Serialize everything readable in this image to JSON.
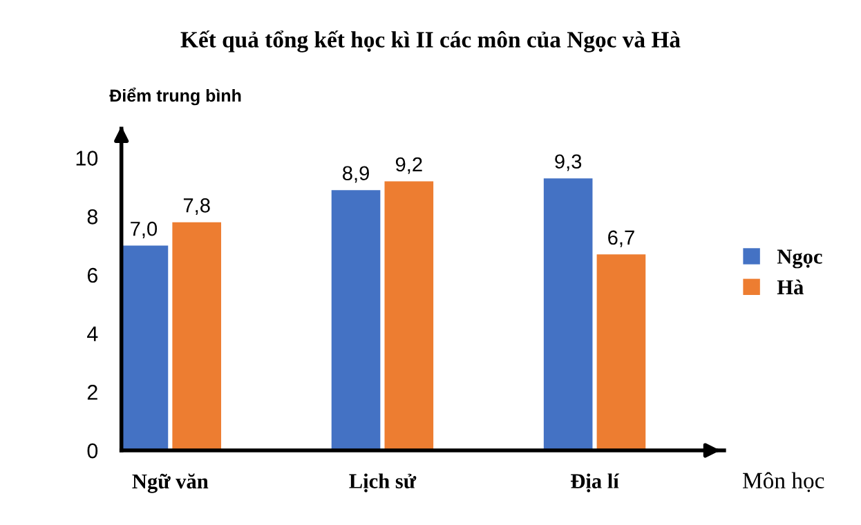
{
  "chart_data": {
    "type": "bar",
    "title": "Kết quả tổng kết học kì II các môn của Ngọc và Hà",
    "xlabel": "Môn học",
    "ylabel": "Điểm trung bình",
    "categories": [
      "Ngữ văn",
      "Lịch sử",
      "Địa lí"
    ],
    "series": [
      {
        "name": "Ngọc",
        "color": "#4472c4",
        "values": [
          7.0,
          8.9,
          9.3
        ],
        "value_labels": [
          "7,0",
          "8,9",
          "9,3"
        ]
      },
      {
        "name": "Hà",
        "color": "#ed7d31",
        "values": [
          7.8,
          9.2,
          6.7
        ],
        "value_labels": [
          "7,8",
          "9,2",
          "6,7"
        ]
      }
    ],
    "ylim": [
      0,
      11
    ],
    "yticks": [
      0,
      2,
      4,
      6,
      8,
      10
    ],
    "grid": false,
    "legend": "right"
  }
}
